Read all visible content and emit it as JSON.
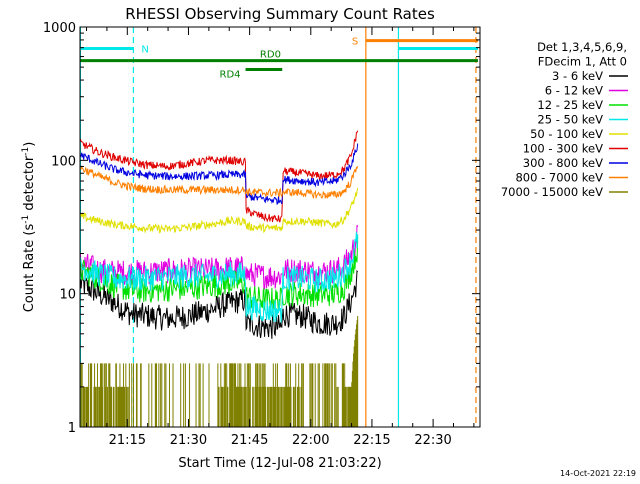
{
  "chart_data": {
    "type": "line",
    "title": "RHESSI Observing Summary Count Rates",
    "xlabel": "Start Time (12-Jul-08 21:03:22)",
    "ylabel_main": "Count Rate (s",
    "ylabel_sup1": "-1",
    "ylabel_mid": " detector",
    "ylabel_sup2": "-1",
    "ylabel_end": ")",
    "yscale": "log",
    "ylim": [
      1,
      1000
    ],
    "xlim_minutes": [
      3.4,
      101.5
    ],
    "x_ticks": [
      {
        "label": "21:15",
        "minutes": 15
      },
      {
        "label": "21:30",
        "minutes": 30
      },
      {
        "label": "21:45",
        "minutes": 45
      },
      {
        "label": "22:00",
        "minutes": 60
      },
      {
        "label": "22:15",
        "minutes": 75
      },
      {
        "label": "22:30",
        "minutes": 90
      }
    ],
    "y_ticks": [
      {
        "label": "1",
        "value": 1
      },
      {
        "label": "10",
        "value": 10
      },
      {
        "label": "100",
        "value": 100
      },
      {
        "label": "1000",
        "value": 1000
      }
    ],
    "legend_header": [
      "Det 1,3,4,5,6,9,",
      "FDecim 1, Att 0"
    ],
    "legend_position": "right",
    "series": [
      {
        "name": "3 - 6 keV",
        "color": "#000000",
        "points": [
          [
            3.5,
            12
          ],
          [
            8,
            10
          ],
          [
            12,
            8.5
          ],
          [
            16,
            7
          ],
          [
            20,
            6.8
          ],
          [
            25,
            6.5
          ],
          [
            30,
            6.8
          ],
          [
            35,
            7.5
          ],
          [
            40,
            8.5
          ],
          [
            44,
            9
          ],
          [
            44.1,
            6
          ],
          [
            49,
            5.6
          ],
          [
            53,
            5.6
          ],
          [
            53.1,
            7
          ],
          [
            58,
            6.8
          ],
          [
            62,
            6
          ],
          [
            66,
            6
          ],
          [
            68,
            6.6
          ],
          [
            70,
            9
          ],
          [
            71.5,
            13
          ]
        ]
      },
      {
        "name": "6 - 12 keV",
        "color": "#e000e0",
        "points": [
          [
            3.5,
            17
          ],
          [
            8,
            15
          ],
          [
            12,
            14.5
          ],
          [
            16,
            14.5
          ],
          [
            20,
            14.5
          ],
          [
            25,
            14.8
          ],
          [
            30,
            15
          ],
          [
            35,
            15
          ],
          [
            40,
            15.5
          ],
          [
            44,
            15.5
          ],
          [
            44.1,
            14
          ],
          [
            49,
            13.5
          ],
          [
            53,
            13.5
          ],
          [
            53.1,
            15
          ],
          [
            58,
            15
          ],
          [
            62,
            14.5
          ],
          [
            66,
            15
          ],
          [
            68,
            16
          ],
          [
            70,
            20
          ],
          [
            71.5,
            28
          ]
        ]
      },
      {
        "name": "12 - 25 keV",
        "color": "#00e000",
        "points": [
          [
            3.5,
            15
          ],
          [
            8,
            13
          ],
          [
            12,
            11.5
          ],
          [
            16,
            10.5
          ],
          [
            20,
            10.5
          ],
          [
            25,
            10.8
          ],
          [
            30,
            11
          ],
          [
            35,
            11.5
          ],
          [
            40,
            12
          ],
          [
            44,
            12
          ],
          [
            44.1,
            9.5
          ],
          [
            49,
            9
          ],
          [
            53,
            9
          ],
          [
            53.1,
            10
          ],
          [
            58,
            10
          ],
          [
            62,
            9.8
          ],
          [
            66,
            10
          ],
          [
            68,
            11
          ],
          [
            70,
            15
          ],
          [
            71.5,
            22
          ]
        ]
      },
      {
        "name": "25 - 50 keV",
        "color": "#00e8e8",
        "points": [
          [
            3.5,
            16
          ],
          [
            8,
            14
          ],
          [
            12,
            13
          ],
          [
            16,
            13
          ],
          [
            20,
            13
          ],
          [
            25,
            13.3
          ],
          [
            30,
            13.5
          ],
          [
            35,
            13.5
          ],
          [
            40,
            14
          ],
          [
            44,
            14
          ],
          [
            44.1,
            8
          ],
          [
            49,
            7.5
          ],
          [
            53,
            7.5
          ],
          [
            53.1,
            13
          ],
          [
            58,
            13
          ],
          [
            62,
            12.5
          ],
          [
            66,
            13
          ],
          [
            68,
            14.5
          ],
          [
            70,
            18
          ],
          [
            71.5,
            26
          ]
        ]
      },
      {
        "name": "50 - 100 keV",
        "color": "#e0e000",
        "points": [
          [
            3.5,
            38
          ],
          [
            8,
            35
          ],
          [
            12,
            33
          ],
          [
            16,
            32
          ],
          [
            20,
            31
          ],
          [
            25,
            30.5
          ],
          [
            30,
            31.5
          ],
          [
            35,
            33
          ],
          [
            40,
            35
          ],
          [
            44,
            35
          ],
          [
            44.1,
            32
          ],
          [
            49,
            31
          ],
          [
            53,
            31
          ],
          [
            53.1,
            35
          ],
          [
            58,
            35
          ],
          [
            62,
            34
          ],
          [
            66,
            33
          ],
          [
            68,
            36
          ],
          [
            70,
            45
          ],
          [
            71.5,
            60
          ]
        ]
      },
      {
        "name": "100 - 300 keV",
        "color": "#e00000",
        "points": [
          [
            3.5,
            135
          ],
          [
            8,
            115
          ],
          [
            12,
            105
          ],
          [
            16,
            97
          ],
          [
            20,
            92
          ],
          [
            25,
            90
          ],
          [
            30,
            95
          ],
          [
            35,
            100
          ],
          [
            40,
            100
          ],
          [
            44,
            97
          ],
          [
            44.1,
            42
          ],
          [
            49,
            37
          ],
          [
            53,
            36
          ],
          [
            53.1,
            83
          ],
          [
            58,
            80
          ],
          [
            62,
            76
          ],
          [
            66,
            78
          ],
          [
            68,
            85
          ],
          [
            70,
            110
          ],
          [
            71.5,
            170
          ]
        ]
      },
      {
        "name": "300 - 800 keV",
        "color": "#0000e0",
        "points": [
          [
            3.5,
            110
          ],
          [
            8,
            95
          ],
          [
            12,
            85
          ],
          [
            16,
            80
          ],
          [
            20,
            77
          ],
          [
            25,
            76
          ],
          [
            30,
            76
          ],
          [
            35,
            77
          ],
          [
            40,
            78
          ],
          [
            44,
            78
          ],
          [
            44.1,
            54
          ],
          [
            49,
            51
          ],
          [
            53,
            50
          ],
          [
            53.1,
            72
          ],
          [
            58,
            70
          ],
          [
            62,
            68
          ],
          [
            66,
            70
          ],
          [
            68,
            77
          ],
          [
            70,
            95
          ],
          [
            71.5,
            130
          ]
        ]
      },
      {
        "name": "800 - 7000 keV",
        "color": "#ff8000",
        "points": [
          [
            3.5,
            88
          ],
          [
            8,
            76
          ],
          [
            12,
            68
          ],
          [
            16,
            63
          ],
          [
            20,
            61
          ],
          [
            25,
            60
          ],
          [
            30,
            60
          ],
          [
            35,
            60
          ],
          [
            40,
            60
          ],
          [
            44,
            60
          ],
          [
            44.1,
            58
          ],
          [
            49,
            57
          ],
          [
            53,
            57
          ],
          [
            53.1,
            58
          ],
          [
            58,
            57
          ],
          [
            62,
            55
          ],
          [
            66,
            55
          ],
          [
            68,
            58
          ],
          [
            70,
            70
          ],
          [
            71.5,
            95
          ]
        ]
      },
      {
        "name": "7000 - 15000 keV",
        "color": "#808000",
        "points": []
      }
    ],
    "flags": [
      {
        "label": "N",
        "kind": "bar",
        "color": "#00e8e8",
        "level": 690,
        "start": 3.5,
        "end": 16.5
      },
      {
        "label": "RD0",
        "kind": "bar",
        "color": "#008000",
        "level": 560,
        "start": 3.5,
        "end": 101
      },
      {
        "label": "RD4",
        "kind": "bar",
        "color": "#008000",
        "level": 480,
        "start": 44,
        "end": 53
      },
      {
        "label": "S",
        "kind": "bar",
        "color": "#ff8000",
        "level": 790,
        "start": 73.5,
        "end": 101
      },
      {
        "label": "",
        "kind": "bar",
        "color": "#00e8e8",
        "level": 690,
        "start": 81.5,
        "end": 101
      }
    ],
    "vlines": [
      {
        "minutes": 3.5,
        "color": "#00e8e8",
        "dashed": false
      },
      {
        "minutes": 16.5,
        "color": "#00e8e8",
        "dashed": true
      },
      {
        "minutes": 73.5,
        "color": "#ff8000",
        "dashed": false
      },
      {
        "minutes": 81.5,
        "color": "#00e8e8",
        "dashed": false
      },
      {
        "minutes": 100.5,
        "color": "#ff8000",
        "dashed": true
      }
    ]
  },
  "timestamp": "14-Oct-2021 22:19"
}
